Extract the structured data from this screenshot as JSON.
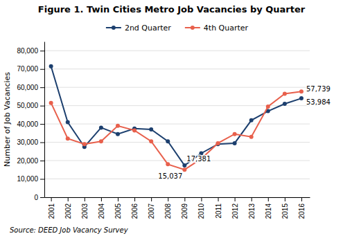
{
  "chart_data": {
    "type": "line",
    "title": "Figure 1. Twin Cities Metro Job Vacancies by Quarter",
    "ylabel": "Number of Job Vacancies",
    "source": "Source: DEED Job Vacancy Survey",
    "x": [
      2001,
      2002,
      2003,
      2004,
      2005,
      2006,
      2007,
      2008,
      2009,
      2010,
      2011,
      2012,
      2013,
      2014,
      2015,
      2016
    ],
    "series": [
      {
        "name": "2nd Quarter",
        "color": "#1c3f6e",
        "marker": "circle",
        "values": [
          71500,
          41000,
          27500,
          38000,
          34500,
          37500,
          37000,
          30500,
          17381,
          24000,
          29000,
          29500,
          42000,
          47000,
          51000,
          53984
        ]
      },
      {
        "name": "4th Quarter",
        "color": "#e8604c",
        "marker": "circle",
        "values": [
          51500,
          32000,
          29000,
          30500,
          39000,
          36500,
          30500,
          18000,
          15037,
          21000,
          29500,
          34500,
          33000,
          49500,
          56500,
          57739
        ]
      }
    ],
    "xlim": [
      2000.6,
      2016.5
    ],
    "xticks": [
      2001,
      2002,
      2003,
      2004,
      2005,
      2006,
      2007,
      2008,
      2009,
      2010,
      2011,
      2012,
      2013,
      2014,
      2015,
      2016
    ],
    "ylim": [
      0,
      85000
    ],
    "yticks": [
      0,
      {
        "value": 10000,
        "label": "10,000"
      },
      {
        "value": 20000,
        "label": "20,000"
      },
      {
        "value": 30000,
        "label": "30,000"
      },
      {
        "value": 40000,
        "label": "40,000"
      },
      {
        "value": 50000,
        "label": "50,000"
      },
      {
        "value": 60000,
        "label": "60,000"
      },
      {
        "value": 70000,
        "label": "70,000"
      },
      {
        "value": 80000,
        "label": "80,000"
      }
    ],
    "annotations": [
      {
        "text": "17,381",
        "x": 2009,
        "y": 17381
      },
      {
        "text": "15,037",
        "x": 2009,
        "y": 15037
      },
      {
        "text": "53,984",
        "x": 2016,
        "y": 53984
      },
      {
        "text": "57,739",
        "x": 2016,
        "y": 57739
      }
    ],
    "grid": true,
    "legend": "top"
  }
}
